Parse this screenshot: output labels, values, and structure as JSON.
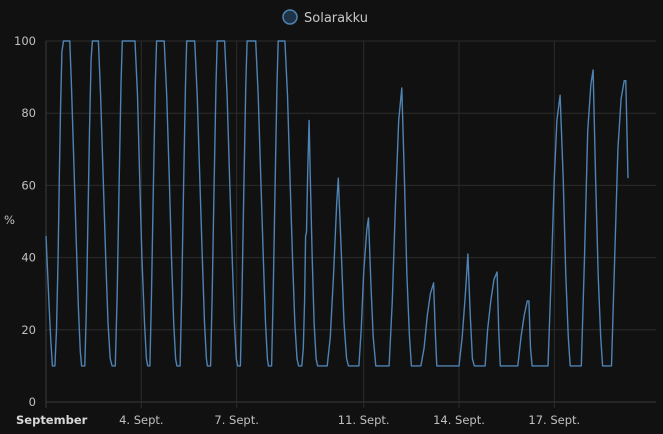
{
  "chart_data": {
    "type": "line",
    "title": "",
    "xlabel": "",
    "ylabel": "%",
    "ylim": [
      0,
      100
    ],
    "y_ticks": [
      0,
      20,
      40,
      60,
      80,
      100
    ],
    "x_ticks": [
      {
        "day": 1,
        "label": "September",
        "bold": true
      },
      {
        "day": 4,
        "label": "4. Sept."
      },
      {
        "day": 7,
        "label": "7. Sept."
      },
      {
        "day": 11,
        "label": "11. Sept."
      },
      {
        "day": 14,
        "label": "14. Sept."
      },
      {
        "day": 17,
        "label": "17. Sept."
      }
    ],
    "x_range_days": [
      1,
      20.2
    ],
    "grid": true,
    "legend_position": "top",
    "series": [
      {
        "name": "Solarakku",
        "color": "#4e83b3",
        "x_unit": "days since 1 Sept 00:00",
        "points": [
          [
            1.0,
            46
          ],
          [
            1.05,
            36
          ],
          [
            1.1,
            26
          ],
          [
            1.15,
            17
          ],
          [
            1.2,
            10
          ],
          [
            1.28,
            10
          ],
          [
            1.33,
            20
          ],
          [
            1.38,
            40
          ],
          [
            1.42,
            62
          ],
          [
            1.46,
            82
          ],
          [
            1.5,
            97
          ],
          [
            1.55,
            100
          ],
          [
            1.75,
            100
          ],
          [
            1.8,
            88
          ],
          [
            1.88,
            65
          ],
          [
            1.95,
            45
          ],
          [
            2.02,
            26
          ],
          [
            2.08,
            14
          ],
          [
            2.12,
            10
          ],
          [
            2.22,
            10
          ],
          [
            2.27,
            25
          ],
          [
            2.32,
            50
          ],
          [
            2.37,
            75
          ],
          [
            2.42,
            95
          ],
          [
            2.46,
            100
          ],
          [
            2.65,
            100
          ],
          [
            2.72,
            85
          ],
          [
            2.8,
            62
          ],
          [
            2.88,
            40
          ],
          [
            2.95,
            22
          ],
          [
            3.02,
            12
          ],
          [
            3.08,
            10
          ],
          [
            3.18,
            10
          ],
          [
            3.24,
            30
          ],
          [
            3.3,
            60
          ],
          [
            3.36,
            88
          ],
          [
            3.4,
            100
          ],
          [
            3.8,
            100
          ],
          [
            3.88,
            85
          ],
          [
            3.95,
            62
          ],
          [
            4.02,
            40
          ],
          [
            4.1,
            22
          ],
          [
            4.16,
            12
          ],
          [
            4.2,
            10
          ],
          [
            4.27,
            10
          ],
          [
            4.32,
            30
          ],
          [
            4.38,
            60
          ],
          [
            4.44,
            88
          ],
          [
            4.48,
            100
          ],
          [
            4.72,
            100
          ],
          [
            4.8,
            85
          ],
          [
            4.88,
            62
          ],
          [
            4.95,
            40
          ],
          [
            5.02,
            22
          ],
          [
            5.08,
            12
          ],
          [
            5.12,
            10
          ],
          [
            5.22,
            10
          ],
          [
            5.27,
            30
          ],
          [
            5.33,
            60
          ],
          [
            5.39,
            88
          ],
          [
            5.43,
            100
          ],
          [
            5.68,
            100
          ],
          [
            5.76,
            85
          ],
          [
            5.84,
            62
          ],
          [
            5.92,
            40
          ],
          [
            5.99,
            22
          ],
          [
            6.05,
            12
          ],
          [
            6.08,
            10
          ],
          [
            6.18,
            10
          ],
          [
            6.23,
            30
          ],
          [
            6.29,
            60
          ],
          [
            6.35,
            88
          ],
          [
            6.39,
            100
          ],
          [
            6.62,
            100
          ],
          [
            6.7,
            85
          ],
          [
            6.78,
            62
          ],
          [
            6.86,
            40
          ],
          [
            6.93,
            22
          ],
          [
            6.99,
            12
          ],
          [
            7.03,
            10
          ],
          [
            7.12,
            10
          ],
          [
            7.17,
            30
          ],
          [
            7.23,
            60
          ],
          [
            7.29,
            88
          ],
          [
            7.33,
            100
          ],
          [
            7.6,
            100
          ],
          [
            7.68,
            85
          ],
          [
            7.76,
            62
          ],
          [
            7.84,
            40
          ],
          [
            7.91,
            22
          ],
          [
            7.97,
            12
          ],
          [
            8.0,
            10
          ],
          [
            8.1,
            10
          ],
          [
            8.15,
            30
          ],
          [
            8.21,
            60
          ],
          [
            8.27,
            88
          ],
          [
            8.31,
            100
          ],
          [
            8.52,
            100
          ],
          [
            8.6,
            85
          ],
          [
            8.68,
            62
          ],
          [
            8.76,
            40
          ],
          [
            8.83,
            22
          ],
          [
            8.9,
            12
          ],
          [
            8.95,
            10
          ],
          [
            9.05,
            10
          ],
          [
            9.1,
            15
          ],
          [
            9.14,
            28
          ],
          [
            9.17,
            46
          ],
          [
            9.2,
            47
          ],
          [
            9.24,
            65
          ],
          [
            9.28,
            78
          ],
          [
            9.32,
            62
          ],
          [
            9.38,
            40
          ],
          [
            9.44,
            22
          ],
          [
            9.5,
            12
          ],
          [
            9.55,
            10
          ],
          [
            9.85,
            10
          ],
          [
            9.95,
            18
          ],
          [
            10.05,
            35
          ],
          [
            10.15,
            55
          ],
          [
            10.2,
            62
          ],
          [
            10.3,
            40
          ],
          [
            10.38,
            22
          ],
          [
            10.46,
            12
          ],
          [
            10.52,
            10
          ],
          [
            10.85,
            10
          ],
          [
            10.92,
            20
          ],
          [
            11.0,
            36
          ],
          [
            11.1,
            48
          ],
          [
            11.15,
            51
          ],
          [
            11.23,
            32
          ],
          [
            11.3,
            18
          ],
          [
            11.38,
            10
          ],
          [
            11.8,
            10
          ],
          [
            11.9,
            28
          ],
          [
            12.0,
            55
          ],
          [
            12.1,
            78
          ],
          [
            12.2,
            87
          ],
          [
            12.28,
            62
          ],
          [
            12.36,
            35
          ],
          [
            12.44,
            18
          ],
          [
            12.5,
            10
          ],
          [
            12.8,
            10
          ],
          [
            12.9,
            15
          ],
          [
            13.0,
            24
          ],
          [
            13.1,
            30
          ],
          [
            13.2,
            33
          ],
          [
            13.25,
            20
          ],
          [
            13.3,
            10
          ],
          [
            14.0,
            10
          ],
          [
            14.1,
            18
          ],
          [
            14.2,
            30
          ],
          [
            14.28,
            41
          ],
          [
            14.35,
            25
          ],
          [
            14.42,
            12
          ],
          [
            14.48,
            10
          ],
          [
            14.82,
            10
          ],
          [
            14.9,
            20
          ],
          [
            15.0,
            28
          ],
          [
            15.1,
            34
          ],
          [
            15.2,
            36
          ],
          [
            15.25,
            20
          ],
          [
            15.3,
            10
          ],
          [
            15.85,
            10
          ],
          [
            15.95,
            18
          ],
          [
            16.05,
            24
          ],
          [
            16.15,
            28
          ],
          [
            16.2,
            28
          ],
          [
            16.25,
            15
          ],
          [
            16.3,
            10
          ],
          [
            16.8,
            10
          ],
          [
            16.9,
            35
          ],
          [
            17.0,
            62
          ],
          [
            17.08,
            78
          ],
          [
            17.18,
            85
          ],
          [
            17.28,
            62
          ],
          [
            17.36,
            35
          ],
          [
            17.44,
            18
          ],
          [
            17.5,
            10
          ],
          [
            17.85,
            10
          ],
          [
            17.95,
            40
          ],
          [
            18.05,
            75
          ],
          [
            18.15,
            88
          ],
          [
            18.22,
            92
          ],
          [
            18.3,
            62
          ],
          [
            18.38,
            35
          ],
          [
            18.46,
            18
          ],
          [
            18.52,
            10
          ],
          [
            18.8,
            10
          ],
          [
            18.9,
            40
          ],
          [
            19.0,
            70
          ],
          [
            19.1,
            84
          ],
          [
            19.2,
            89
          ],
          [
            19.25,
            89
          ],
          [
            19.32,
            62
          ]
        ]
      }
    ]
  }
}
